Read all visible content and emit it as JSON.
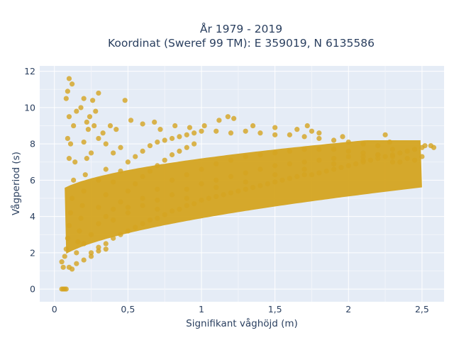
{
  "chart_data": {
    "type": "scatter",
    "title_line1": "År 1979 - 2019",
    "title_line2": "Koordinat (Sweref 99 TM): E 359019, N 6135586",
    "xlabel": "Signifikant våghöjd (m)",
    "ylabel": "Vågperiod (s)",
    "xlim": [
      -0.1,
      2.65
    ],
    "ylim": [
      -0.7,
      12.3
    ],
    "x_ticks": [
      {
        "value": 0,
        "label": "0"
      },
      {
        "value": 0.5,
        "label": "0,5"
      },
      {
        "value": 1,
        "label": "1"
      },
      {
        "value": 1.5,
        "label": "1,5"
      },
      {
        "value": 2,
        "label": "2"
      },
      {
        "value": 2.5,
        "label": "2,5"
      }
    ],
    "y_ticks": [
      {
        "value": 0,
        "label": "0"
      },
      {
        "value": 2,
        "label": "2"
      },
      {
        "value": 4,
        "label": "4"
      },
      {
        "value": 6,
        "label": "6"
      },
      {
        "value": 8,
        "label": "8"
      },
      {
        "value": 10,
        "label": "10"
      },
      {
        "value": 12,
        "label": "12"
      }
    ],
    "grid": true,
    "marker_color": "#d4a420",
    "series": [
      {
        "name": "",
        "points": [
          [
            0.05,
            0.0
          ],
          [
            0.06,
            0.0
          ],
          [
            0.07,
            0.0
          ],
          [
            0.08,
            0.0
          ],
          [
            0.05,
            1.5
          ],
          [
            0.06,
            1.2
          ],
          [
            0.07,
            1.8
          ],
          [
            0.08,
            2.2
          ],
          [
            0.09,
            2.8
          ],
          [
            0.1,
            3.5
          ],
          [
            0.11,
            4.2
          ],
          [
            0.12,
            5.0
          ],
          [
            0.13,
            6.0
          ],
          [
            0.1,
            7.2
          ],
          [
            0.09,
            8.3
          ],
          [
            0.1,
            9.5
          ],
          [
            0.08,
            10.5
          ],
          [
            0.1,
            11.6
          ],
          [
            0.12,
            11.3
          ],
          [
            0.09,
            10.9
          ],
          [
            0.13,
            9.0
          ],
          [
            0.11,
            8.0
          ],
          [
            0.14,
            7.0
          ],
          [
            0.15,
            2.0
          ],
          [
            0.16,
            2.6
          ],
          [
            0.17,
            3.2
          ],
          [
            0.18,
            3.9
          ],
          [
            0.19,
            4.6
          ],
          [
            0.2,
            5.4
          ],
          [
            0.21,
            6.3
          ],
          [
            0.22,
            7.2
          ],
          [
            0.2,
            8.1
          ],
          [
            0.23,
            8.8
          ],
          [
            0.24,
            9.5
          ],
          [
            0.26,
            10.4
          ],
          [
            0.3,
            10.8
          ],
          [
            0.28,
            9.8
          ],
          [
            0.25,
            2.0
          ],
          [
            0.3,
            2.3
          ],
          [
            0.35,
            2.5
          ],
          [
            0.4,
            2.8
          ],
          [
            0.45,
            3.0
          ],
          [
            0.5,
            3.2
          ],
          [
            0.55,
            3.4
          ],
          [
            0.6,
            3.6
          ],
          [
            0.65,
            3.8
          ],
          [
            0.7,
            3.9
          ],
          [
            0.75,
            4.1
          ],
          [
            0.8,
            4.3
          ],
          [
            0.85,
            4.4
          ],
          [
            0.9,
            4.6
          ],
          [
            0.95,
            4.7
          ],
          [
            1.0,
            4.9
          ],
          [
            1.05,
            5.0
          ],
          [
            1.1,
            5.1
          ],
          [
            1.15,
            5.2
          ],
          [
            1.2,
            5.3
          ],
          [
            1.25,
            5.4
          ],
          [
            1.3,
            5.5
          ],
          [
            1.35,
            5.6
          ],
          [
            1.4,
            5.7
          ],
          [
            1.45,
            5.8
          ],
          [
            1.5,
            5.9
          ],
          [
            1.55,
            6.0
          ],
          [
            1.6,
            6.1
          ],
          [
            1.65,
            6.2
          ],
          [
            1.7,
            6.3
          ],
          [
            1.75,
            6.3
          ],
          [
            1.8,
            6.4
          ],
          [
            1.85,
            6.5
          ],
          [
            1.9,
            6.6
          ],
          [
            1.95,
            6.7
          ],
          [
            2.0,
            6.8
          ],
          [
            2.05,
            6.9
          ],
          [
            2.1,
            7.0
          ],
          [
            2.15,
            7.1
          ],
          [
            2.2,
            7.2
          ],
          [
            2.25,
            7.3
          ],
          [
            2.3,
            7.4
          ],
          [
            2.35,
            7.5
          ],
          [
            2.4,
            7.6
          ],
          [
            2.45,
            7.7
          ],
          [
            2.5,
            7.8
          ],
          [
            2.52,
            7.9
          ],
          [
            0.3,
            4.5
          ],
          [
            0.35,
            5.2
          ],
          [
            0.4,
            5.9
          ],
          [
            0.45,
            6.5
          ],
          [
            0.5,
            7.0
          ],
          [
            0.55,
            7.3
          ],
          [
            0.6,
            7.6
          ],
          [
            0.65,
            7.9
          ],
          [
            0.7,
            8.1
          ],
          [
            0.75,
            8.2
          ],
          [
            0.8,
            8.3
          ],
          [
            0.85,
            8.4
          ],
          [
            0.9,
            8.5
          ],
          [
            0.95,
            8.6
          ],
          [
            1.0,
            8.7
          ],
          [
            1.1,
            8.7
          ],
          [
            1.2,
            8.6
          ],
          [
            1.3,
            8.7
          ],
          [
            1.4,
            8.6
          ],
          [
            1.5,
            8.5
          ],
          [
            1.6,
            8.5
          ],
          [
            1.7,
            8.4
          ],
          [
            1.8,
            8.3
          ],
          [
            1.9,
            8.2
          ],
          [
            2.0,
            8.1
          ],
          [
            2.1,
            8.0
          ],
          [
            2.2,
            7.9
          ],
          [
            2.3,
            7.7
          ],
          [
            0.38,
            9.0
          ],
          [
            0.42,
            8.8
          ],
          [
            0.48,
            10.4
          ],
          [
            0.52,
            9.3
          ],
          [
            0.6,
            9.1
          ],
          [
            0.68,
            9.2
          ],
          [
            0.72,
            8.8
          ],
          [
            0.82,
            9.0
          ],
          [
            0.92,
            8.9
          ],
          [
            1.02,
            9.0
          ],
          [
            1.12,
            9.3
          ],
          [
            1.18,
            9.5
          ],
          [
            1.22,
            9.4
          ],
          [
            1.35,
            9.0
          ],
          [
            1.5,
            8.9
          ],
          [
            1.65,
            8.8
          ],
          [
            1.72,
            9.0
          ],
          [
            1.75,
            8.7
          ],
          [
            1.8,
            8.6
          ],
          [
            1.96,
            8.4
          ],
          [
            2.25,
            8.5
          ],
          [
            0.5,
            4.5
          ],
          [
            0.6,
            5.0
          ],
          [
            0.7,
            5.5
          ],
          [
            0.8,
            6.0
          ],
          [
            0.9,
            6.3
          ],
          [
            1.0,
            6.6
          ],
          [
            1.1,
            6.9
          ],
          [
            1.2,
            7.1
          ],
          [
            1.3,
            7.3
          ],
          [
            1.4,
            7.4
          ],
          [
            1.5,
            7.5
          ],
          [
            1.6,
            7.6
          ],
          [
            1.7,
            7.7
          ],
          [
            1.8,
            7.7
          ],
          [
            1.9,
            7.7
          ],
          [
            2.0,
            7.6
          ],
          [
            2.1,
            7.5
          ],
          [
            2.2,
            7.4
          ],
          [
            0.4,
            3.8
          ],
          [
            0.5,
            4.2
          ],
          [
            0.6,
            4.6
          ],
          [
            0.7,
            4.9
          ],
          [
            0.8,
            5.2
          ],
          [
            0.9,
            5.5
          ],
          [
            1.0,
            5.8
          ],
          [
            1.1,
            6.0
          ],
          [
            1.2,
            6.2
          ],
          [
            1.3,
            6.4
          ],
          [
            1.4,
            6.6
          ],
          [
            1.5,
            6.8
          ],
          [
            1.6,
            6.9
          ],
          [
            1.7,
            7.0
          ],
          [
            1.8,
            7.1
          ],
          [
            1.9,
            7.2
          ],
          [
            2.0,
            7.3
          ],
          [
            2.1,
            7.3
          ],
          [
            2.2,
            7.4
          ],
          [
            2.3,
            7.3
          ],
          [
            0.7,
            4.4
          ],
          [
            0.9,
            5.0
          ],
          [
            1.1,
            5.6
          ],
          [
            1.3,
            5.9
          ],
          [
            1.5,
            6.3
          ],
          [
            1.7,
            6.6
          ],
          [
            1.9,
            6.9
          ],
          [
            2.1,
            7.1
          ],
          [
            2.3,
            7.0
          ],
          [
            2.4,
            7.2
          ],
          [
            2.56,
            7.9
          ],
          [
            2.58,
            7.8
          ],
          [
            2.5,
            7.3
          ],
          [
            2.45,
            7.1
          ],
          [
            2.35,
            7.0
          ],
          [
            2.28,
            8.1
          ],
          [
            0.2,
            1.6
          ],
          [
            0.25,
            1.8
          ],
          [
            0.15,
            1.4
          ],
          [
            0.12,
            1.1
          ],
          [
            0.1,
            1.2
          ],
          [
            0.3,
            2.1
          ],
          [
            0.35,
            2.2
          ],
          [
            0.2,
            2.5
          ],
          [
            0.25,
            3.0
          ],
          [
            0.3,
            3.6
          ],
          [
            0.35,
            4.0
          ],
          [
            0.4,
            4.4
          ],
          [
            0.45,
            4.8
          ],
          [
            0.5,
            5.4
          ],
          [
            0.55,
            5.8
          ],
          [
            0.6,
            6.2
          ],
          [
            0.65,
            6.5
          ],
          [
            0.7,
            6.8
          ],
          [
            0.75,
            7.1
          ],
          [
            0.8,
            7.4
          ],
          [
            0.85,
            7.6
          ],
          [
            0.9,
            7.8
          ],
          [
            0.95,
            8.0
          ],
          [
            0.3,
            6.0
          ],
          [
            0.35,
            6.6
          ],
          [
            0.25,
            7.5
          ],
          [
            0.3,
            8.3
          ],
          [
            0.35,
            8.0
          ],
          [
            0.4,
            7.5
          ],
          [
            0.45,
            7.8
          ],
          [
            0.22,
            9.2
          ],
          [
            0.27,
            9.0
          ],
          [
            0.33,
            8.6
          ],
          [
            0.18,
            10.0
          ],
          [
            0.15,
            9.8
          ],
          [
            0.2,
            10.5
          ]
        ]
      }
    ]
  }
}
